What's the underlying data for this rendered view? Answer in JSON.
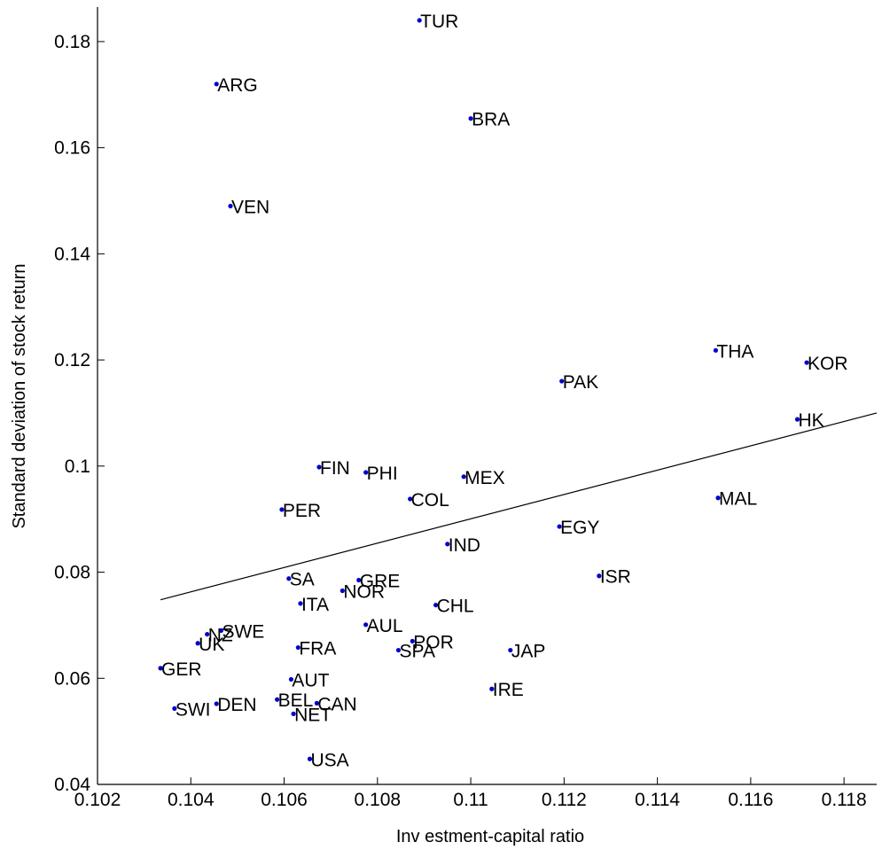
{
  "chart_data": {
    "type": "scatter",
    "xlabel": "Inv estment-capital ratio",
    "ylabel": "Standard deviation of stock return",
    "xlim": [
      0.102,
      0.1187
    ],
    "ylim": [
      0.04,
      0.1865
    ],
    "xticks": [
      0.102,
      0.104,
      0.106,
      0.108,
      0.11,
      0.112,
      0.114,
      0.116,
      0.118
    ],
    "xtick_labels": [
      "0.102",
      "0.104",
      "0.106",
      "0.108",
      "0.11",
      "0.112",
      "0.114",
      "0.116",
      "0.118"
    ],
    "yticks": [
      0.04,
      0.06,
      0.08,
      0.1,
      0.12,
      0.14,
      0.16,
      0.18
    ],
    "ytick_labels": [
      "0.04",
      "0.06",
      "0.08",
      "0.1",
      "0.12",
      "0.14",
      "0.16",
      "0.18"
    ],
    "grid": false,
    "point_color": "#0000cc",
    "points": [
      {
        "label": "TUR",
        "x": 0.1089,
        "y": 0.184
      },
      {
        "label": "ARG",
        "x": 0.10455,
        "y": 0.172
      },
      {
        "label": "BRA",
        "x": 0.11,
        "y": 0.1655
      },
      {
        "label": "VEN",
        "x": 0.10485,
        "y": 0.149
      },
      {
        "label": "THA",
        "x": 0.11525,
        "y": 0.1218
      },
      {
        "label": "KOR",
        "x": 0.1172,
        "y": 0.1195
      },
      {
        "label": "PAK",
        "x": 0.11195,
        "y": 0.116
      },
      {
        "label": "HK",
        "x": 0.117,
        "y": 0.1088
      },
      {
        "label": "FIN",
        "x": 0.10675,
        "y": 0.0998
      },
      {
        "label": "PHI",
        "x": 0.10775,
        "y": 0.0988
      },
      {
        "label": "MEX",
        "x": 0.10985,
        "y": 0.098
      },
      {
        "label": "MAL",
        "x": 0.1153,
        "y": 0.094
      },
      {
        "label": "COL",
        "x": 0.1087,
        "y": 0.0938
      },
      {
        "label": "PER",
        "x": 0.10595,
        "y": 0.0918
      },
      {
        "label": "EGY",
        "x": 0.1119,
        "y": 0.0886
      },
      {
        "label": "IND",
        "x": 0.1095,
        "y": 0.0853
      },
      {
        "label": "SA",
        "x": 0.1061,
        "y": 0.0788
      },
      {
        "label": "GRE",
        "x": 0.1076,
        "y": 0.0785
      },
      {
        "label": "ISR",
        "x": 0.11275,
        "y": 0.0793
      },
      {
        "label": "NOR",
        "x": 0.10725,
        "y": 0.0765
      },
      {
        "label": "ITA",
        "x": 0.10635,
        "y": 0.0741
      },
      {
        "label": "CHL",
        "x": 0.10925,
        "y": 0.0738
      },
      {
        "label": "AUL",
        "x": 0.10775,
        "y": 0.0701
      },
      {
        "label": "SWE",
        "x": 0.10465,
        "y": 0.069
      },
      {
        "label": "NZ",
        "x": 0.10435,
        "y": 0.0683
      },
      {
        "label": "POR",
        "x": 0.10875,
        "y": 0.067
      },
      {
        "label": "UK",
        "x": 0.10415,
        "y": 0.0666
      },
      {
        "label": "FRA",
        "x": 0.1063,
        "y": 0.0658
      },
      {
        "label": "SPA",
        "x": 0.10845,
        "y": 0.0653
      },
      {
        "label": "JAP",
        "x": 0.11085,
        "y": 0.0653
      },
      {
        "label": "GER",
        "x": 0.10335,
        "y": 0.0619
      },
      {
        "label": "AUT",
        "x": 0.10615,
        "y": 0.0598
      },
      {
        "label": "IRE",
        "x": 0.11045,
        "y": 0.058
      },
      {
        "label": "BEL",
        "x": 0.10585,
        "y": 0.056
      },
      {
        "label": "CAN",
        "x": 0.1067,
        "y": 0.0553
      },
      {
        "label": "DEN",
        "x": 0.10455,
        "y": 0.0552
      },
      {
        "label": "SWI",
        "x": 0.10365,
        "y": 0.0543
      },
      {
        "label": "NET",
        "x": 0.1062,
        "y": 0.0533
      },
      {
        "label": "USA",
        "x": 0.10655,
        "y": 0.0448
      }
    ],
    "fit_line": [
      {
        "x": 0.10335,
        "y": 0.0748
      },
      {
        "x": 0.1187,
        "y": 0.11
      }
    ]
  }
}
